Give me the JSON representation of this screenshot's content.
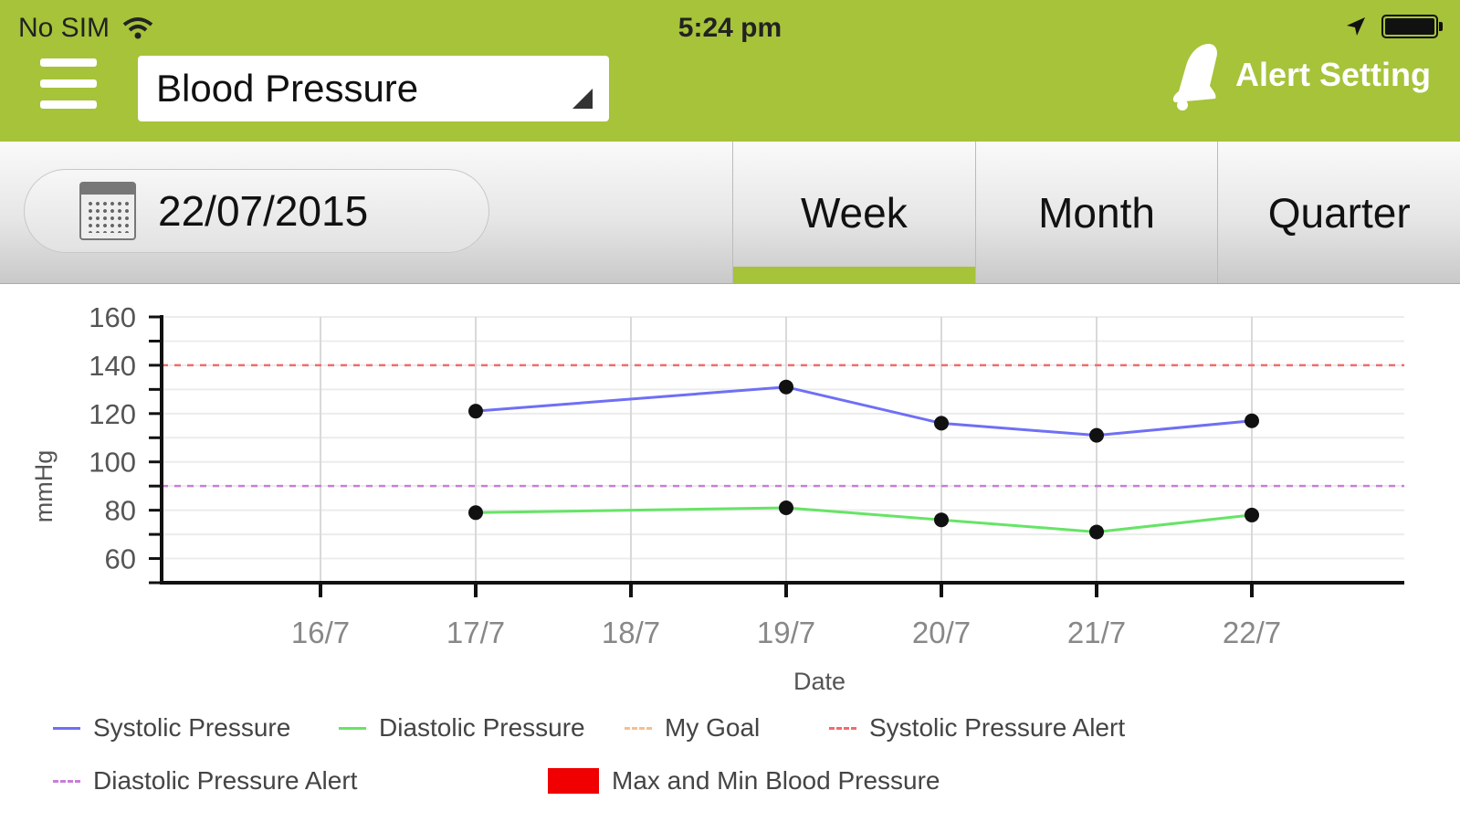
{
  "status_bar": {
    "carrier": "No SIM",
    "time": "5:24 pm"
  },
  "header": {
    "selected_metric": "Blood Pressure",
    "alert_setting_label": "Alert Setting"
  },
  "controls": {
    "date": "22/07/2015",
    "tabs": [
      "Week",
      "Month",
      "Quarter"
    ],
    "active_tab": "Week"
  },
  "colors": {
    "accent": "#a6c33a",
    "systolic": "#6f6ff5",
    "diastolic": "#66e466",
    "my_goal": "#f5c089",
    "systolic_alert": "#f26b6b",
    "diastolic_alert": "#c87ed8",
    "max_min": "#f00000"
  },
  "chart_data": {
    "type": "line",
    "xlabel": "Date",
    "ylabel": "mmHg",
    "categories": [
      "16/7",
      "17/7",
      "18/7",
      "19/7",
      "20/7",
      "21/7",
      "22/7"
    ],
    "y_ticks": [
      60,
      80,
      100,
      120,
      140,
      160
    ],
    "ylim": [
      50,
      160
    ],
    "grid": true,
    "series": [
      {
        "name": "Systolic Pressure",
        "values": [
          null,
          121,
          null,
          131,
          116,
          111,
          117
        ]
      },
      {
        "name": "Diastolic Pressure",
        "values": [
          null,
          79,
          null,
          81,
          76,
          71,
          78
        ]
      }
    ],
    "thresholds": [
      {
        "name": "Systolic Pressure Alert",
        "value": 140
      },
      {
        "name": "Diastolic Pressure Alert",
        "value": 90
      }
    ],
    "legend": [
      "Systolic Pressure",
      "Diastolic Pressure",
      "My Goal",
      "Systolic Pressure Alert",
      "Diastolic Pressure Alert",
      "Max and Min Blood Pressure"
    ],
    "legend_position": "bottom"
  }
}
